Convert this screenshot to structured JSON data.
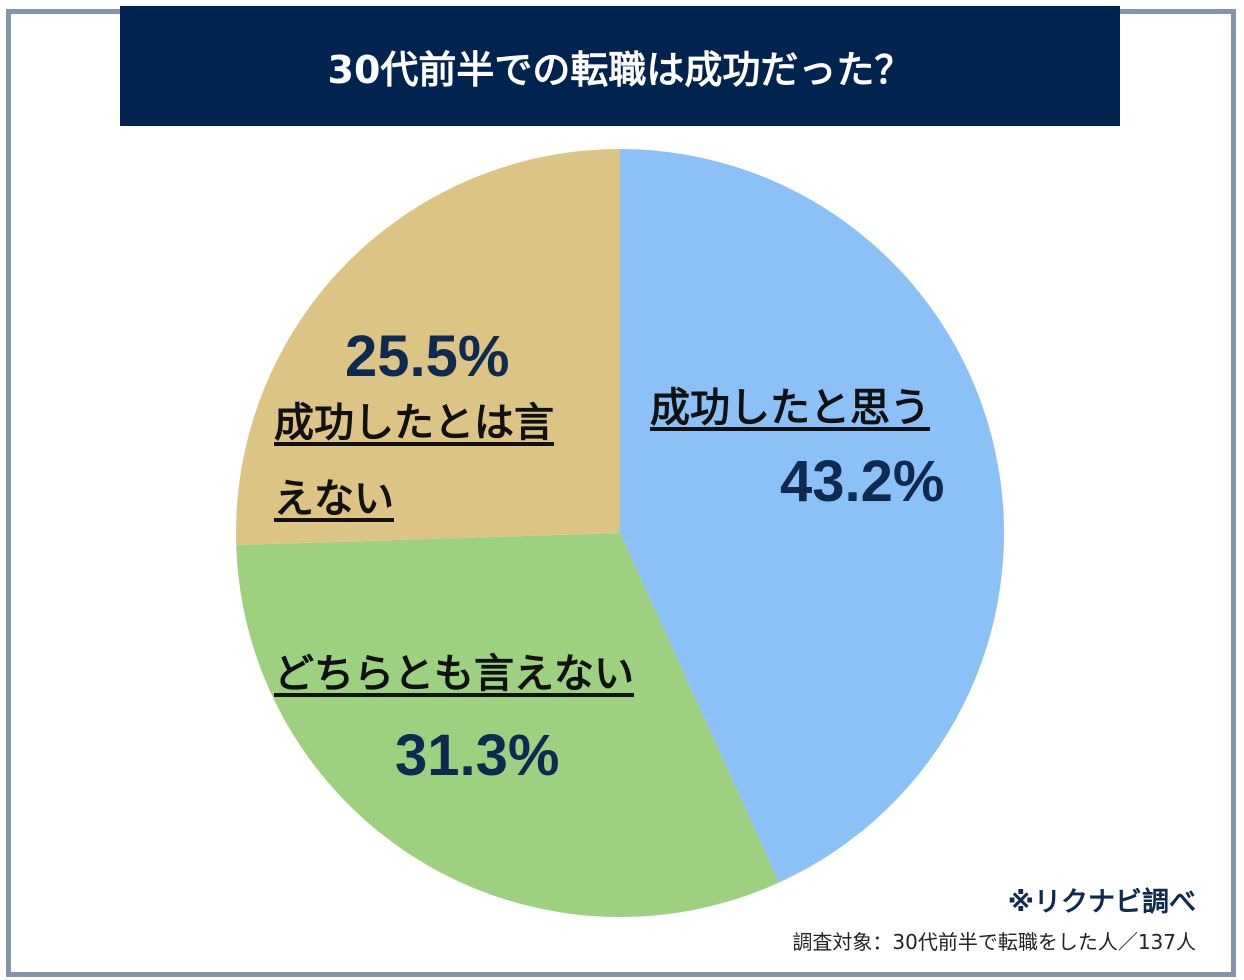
{
  "chart_data": {
    "type": "pie",
    "title": "30代前半での転職は成功だった？",
    "slices": [
      {
        "label": "成功したと思う",
        "value": 43.2,
        "value_label": "43.2%",
        "color": "#8bc1f7"
      },
      {
        "label": "どちらとも言えない",
        "value": 31.3,
        "value_label": "31.3%",
        "color": "#9dd17f"
      },
      {
        "label": "成功したとは言えない",
        "value": 25.5,
        "value_label": "25.5%",
        "color": "#dcc584"
      }
    ],
    "source": "※リクナビ調べ",
    "note": "調査対象：30代前半で転職をした人／137人"
  }
}
